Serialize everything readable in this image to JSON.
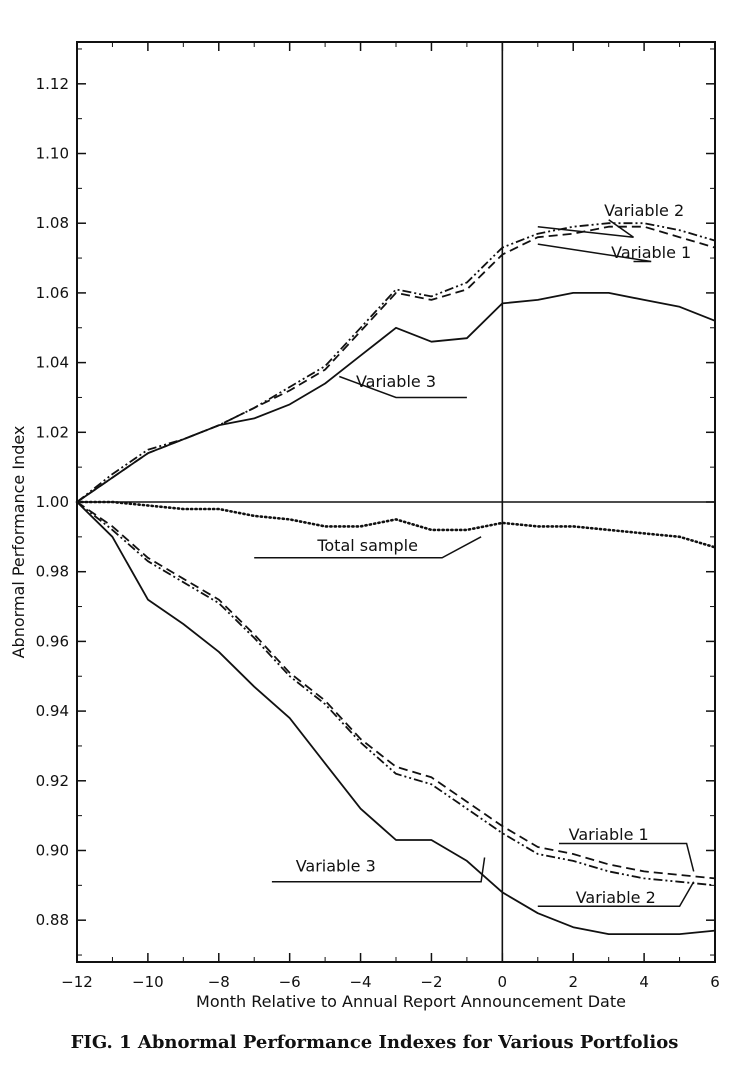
{
  "caption": "FIG. 1 Abnormal Performance Indexes for Various Portfolios",
  "chart_data": {
    "type": "line",
    "title": "",
    "xlabel": "Month Relative to Annual Report  Announcement Date",
    "ylabel": "Abnormal Performance  Index",
    "xlim": [
      -12,
      6
    ],
    "ylim": [
      0.868,
      1.132
    ],
    "x_ticks": [
      -12,
      -10,
      -8,
      -6,
      -4,
      -2,
      0,
      2,
      4,
      6
    ],
    "x_tick_labels": [
      "−12",
      "−10",
      "−8",
      "−6",
      "−4",
      "−2",
      "0",
      "2",
      "4",
      "6"
    ],
    "y_ticks": [
      0.88,
      0.9,
      0.92,
      0.94,
      0.96,
      0.98,
      1.0,
      1.02,
      1.04,
      1.06,
      1.08,
      1.1,
      1.12
    ],
    "y_tick_labels": [
      "0.88",
      "0.90",
      "0.92",
      "0.94",
      "0.96",
      "0.98",
      "1.00",
      "1.02",
      "1.04",
      "1.06",
      "1.08",
      "1.10",
      "1.12"
    ],
    "reference_lines": {
      "horizontal": 1.0,
      "vertical": 0
    },
    "grid": false,
    "legend": "inline labels",
    "x": [
      -12,
      -11,
      -10,
      -9,
      -8,
      -7,
      -6,
      -5,
      -4,
      -3,
      -2,
      -1,
      0,
      1,
      2,
      3,
      4,
      5,
      6
    ],
    "series": [
      {
        "style": "dashdot",
        "group": "positive",
        "values": [
          1.0,
          1.008,
          1.015,
          1.018,
          1.022,
          1.027,
          1.033,
          1.039,
          1.05,
          1.061,
          1.059,
          1.063,
          1.073,
          1.077,
          1.079,
          1.08,
          1.08,
          1.078,
          1.075
        ]
      },
      {
        "style": "dashed",
        "group": "positive",
        "values": [
          1.0,
          1.007,
          1.014,
          1.018,
          1.022,
          1.027,
          1.032,
          1.038,
          1.049,
          1.06,
          1.058,
          1.061,
          1.071,
          1.076,
          1.077,
          1.079,
          1.079,
          1.076,
          1.073
        ]
      },
      {
        "style": "solid",
        "group": "positive",
        "values": [
          1.0,
          1.007,
          1.014,
          1.018,
          1.022,
          1.024,
          1.028,
          1.034,
          1.042,
          1.05,
          1.046,
          1.047,
          1.057,
          1.058,
          1.06,
          1.06,
          1.058,
          1.056,
          1.052
        ]
      },
      {
        "style": "dotted",
        "group": "total",
        "values": [
          1.0,
          1.0,
          0.999,
          0.998,
          0.998,
          0.996,
          0.995,
          0.993,
          0.993,
          0.995,
          0.992,
          0.992,
          0.994,
          0.993,
          0.993,
          0.992,
          0.991,
          0.99,
          0.987
        ]
      },
      {
        "style": "dashed",
        "group": "negative",
        "values": [
          1.0,
          0.993,
          0.984,
          0.978,
          0.972,
          0.962,
          0.951,
          0.943,
          0.932,
          0.924,
          0.921,
          0.914,
          0.907,
          0.901,
          0.899,
          0.896,
          0.894,
          0.893,
          0.892
        ]
      },
      {
        "style": "dashdot",
        "group": "negative",
        "values": [
          1.0,
          0.992,
          0.983,
          0.977,
          0.971,
          0.961,
          0.95,
          0.942,
          0.931,
          0.922,
          0.919,
          0.912,
          0.905,
          0.899,
          0.897,
          0.894,
          0.892,
          0.891,
          0.89
        ]
      },
      {
        "style": "solid",
        "group": "negative",
        "values": [
          1.0,
          0.99,
          0.972,
          0.965,
          0.957,
          0.947,
          0.938,
          0.925,
          0.912,
          0.903,
          0.903,
          0.897,
          0.888,
          0.882,
          0.878,
          0.876,
          0.876,
          0.876,
          0.877
        ]
      }
    ],
    "annotations": [
      {
        "text": "Variable 2",
        "anchor": [
          4.0,
          1.082
        ],
        "tail": [
          3.0,
          1.081
        ],
        "tip": [
          3.7,
          1.076
        ],
        "lead_to": [
          1.0,
          1.079
        ]
      },
      {
        "text": "Variable 1",
        "anchor": [
          4.2,
          1.07
        ],
        "tail": [
          3.7,
          1.069
        ],
        "tip": [
          4.2,
          1.069
        ],
        "lead_to": [
          1.0,
          1.074
        ]
      },
      {
        "text": "Variable 3",
        "anchor": [
          -3.0,
          1.033
        ],
        "tail": [
          -1.0,
          1.03
        ],
        "tip": [
          -3.0,
          1.03
        ],
        "lead_to": [
          -4.6,
          1.036
        ]
      },
      {
        "text": "Total sample",
        "anchor": [
          -3.8,
          0.986
        ],
        "tail": [
          -7.0,
          0.984
        ],
        "tip": [
          -1.7,
          0.984
        ],
        "lead_to": [
          -0.6,
          0.99
        ]
      },
      {
        "text": "Variable 1",
        "anchor": [
          3.0,
          0.903
        ],
        "tail": [
          1.6,
          0.902
        ],
        "tip": [
          5.2,
          0.902
        ],
        "lead_to": [
          5.4,
          0.894
        ]
      },
      {
        "text": "Variable 3",
        "anchor": [
          -4.7,
          0.894
        ],
        "tail": [
          -6.5,
          0.891
        ],
        "tip": [
          -0.6,
          0.891
        ],
        "lead_to": [
          -0.5,
          0.898
        ]
      },
      {
        "text": "Variable 2",
        "anchor": [
          3.2,
          0.885
        ],
        "tail": [
          1.0,
          0.884
        ],
        "tip": [
          5.0,
          0.884
        ],
        "lead_to": [
          5.4,
          0.891
        ]
      }
    ]
  }
}
